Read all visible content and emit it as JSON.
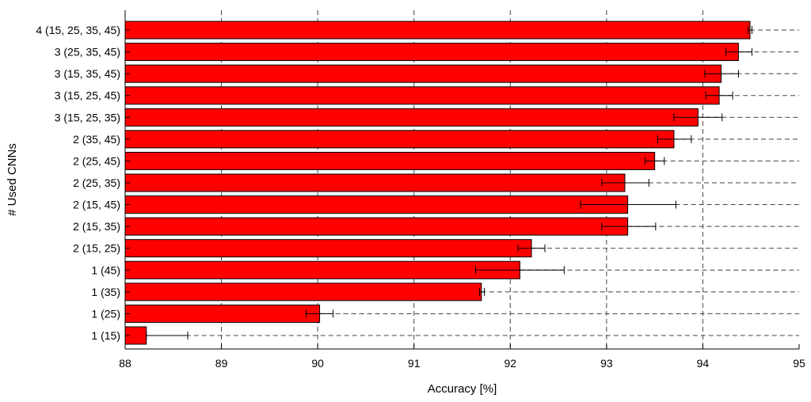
{
  "chart_data": {
    "type": "bar",
    "orientation": "horizontal",
    "title": "",
    "xlabel": "Accuracy [%]",
    "ylabel": "# Used CNNs",
    "xlim": [
      88,
      95
    ],
    "xticks": [
      "88",
      "89",
      "90",
      "91",
      "92",
      "93",
      "94",
      "95"
    ],
    "grid": true,
    "bar_color": "#ff0000",
    "categories": [
      "4 (15, 25, 35, 45)",
      "3 (25, 35, 45)",
      "3 (15, 35, 45)",
      "3 (15, 25, 45)",
      "3 (15, 25, 35)",
      "2 (35, 45)",
      "2 (25, 45)",
      "2 (25, 35)",
      "2 (15, 45)",
      "2 (15, 35)",
      "2 (15, 25)",
      "1 (45)",
      "1 (35)",
      "1 (25)",
      "1 (15)"
    ],
    "values": [
      94.49,
      94.37,
      94.19,
      94.17,
      93.95,
      93.7,
      93.5,
      93.19,
      93.22,
      93.22,
      92.22,
      92.1,
      91.7,
      90.02,
      88.22
    ],
    "error_low": [
      94.47,
      94.24,
      94.02,
      94.03,
      93.7,
      93.53,
      93.4,
      92.95,
      92.73,
      92.95,
      92.08,
      91.64,
      91.68,
      89.88,
      88.22
    ],
    "error_high": [
      94.51,
      94.51,
      94.37,
      94.31,
      94.2,
      93.88,
      93.6,
      93.44,
      93.72,
      93.51,
      92.36,
      92.56,
      91.73,
      90.16,
      88.65
    ]
  }
}
